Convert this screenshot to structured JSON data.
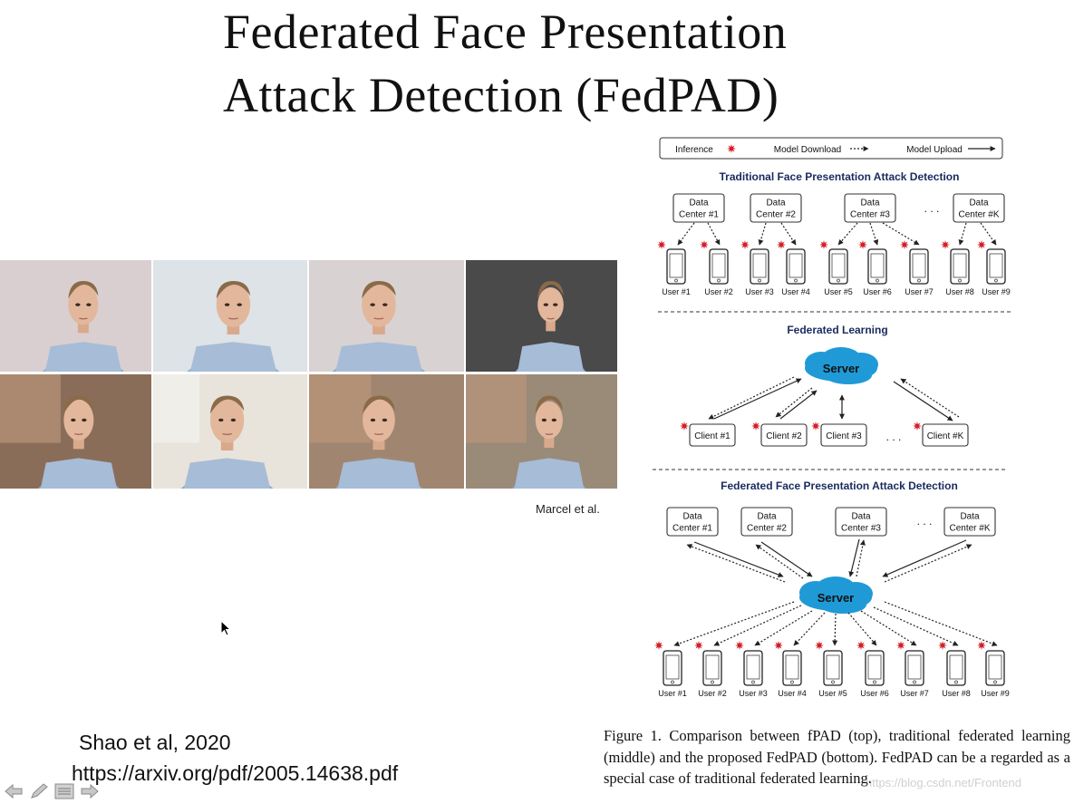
{
  "slide": {
    "title_line1": "Federated Face Presentation",
    "title_line2": "Attack Detection (FedPAD)",
    "credit": "Marcel et al.",
    "citation": "Shao et al, 2020",
    "link": "https://arxiv.org/pdf/2005.14638.pdf",
    "watermark": "https://blog.csdn.net/Frontend"
  },
  "figure": {
    "legend": {
      "inference": "Inference",
      "download": "Model Download",
      "upload": "Model Upload"
    },
    "section1_title": "Traditional Face Presentation Attack Detection",
    "section2_title": "Federated Learning",
    "section3_title": "Federated Face Presentation Attack Detection",
    "server_label": "Server",
    "ellipsis": ". . .",
    "data_centers": [
      [
        "Data",
        "Center #1"
      ],
      [
        "Data",
        "Center #2"
      ],
      [
        "Data",
        "Center #3"
      ],
      [
        "Data",
        "Center #K"
      ]
    ],
    "clients": [
      "Client #1",
      "Client #2",
      "Client #3",
      "Client #K"
    ],
    "users": [
      "User #1",
      "User #2",
      "User #3",
      "User #4",
      "User #5",
      "User #6",
      "User #7",
      "User #8",
      "User #9"
    ],
    "colors": {
      "title": "#1a2a5e",
      "server": "#1f9ad6",
      "star": "#d4202a"
    }
  },
  "caption": "Figure 1. Comparison between fPAD (top), traditional federated learning (middle) and the proposed FedPAD (bottom). FedPAD can be a regarded as a special case of traditional federated learning.",
  "nav": {
    "icons": [
      "back-arrow-icon",
      "pen-icon",
      "menu-icon",
      "forward-arrow-icon"
    ]
  }
}
